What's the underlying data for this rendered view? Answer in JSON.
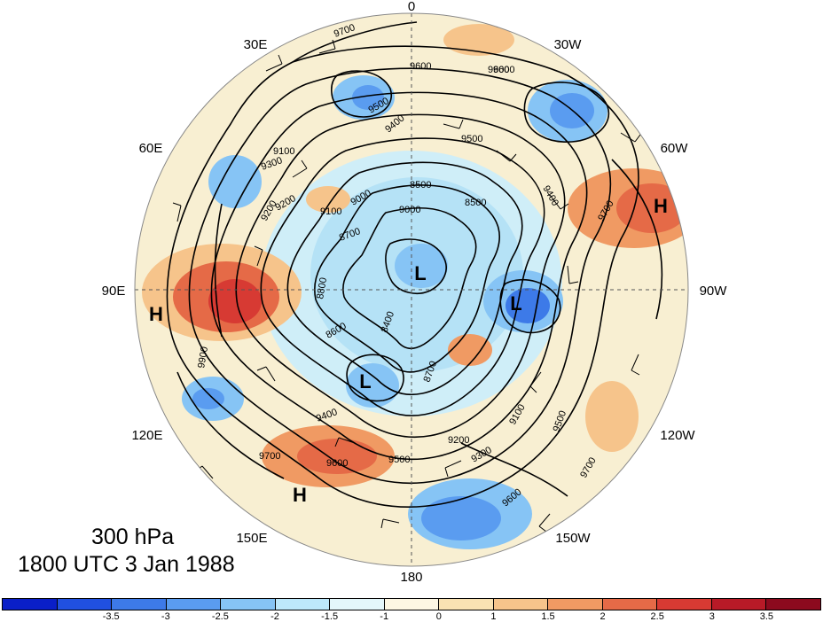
{
  "title": {
    "level": "300 hPa",
    "time": "1800 UTC 3 Jan 1988"
  },
  "longitude_labels": {
    "lon_0": "0",
    "lon_30w": "30W",
    "lon_60w": "60W",
    "lon_90w": "90W",
    "lon_120w": "120W",
    "lon_150w": "150W",
    "lon_180": "180",
    "lon_150e": "150E",
    "lon_120e": "120E",
    "lon_90e": "90E",
    "lon_60e": "60E",
    "lon_30e": "30E"
  },
  "contour_labels": [
    "9700",
    "9600",
    "9600",
    "9500",
    "9400",
    "9300",
    "9200",
    "9400",
    "9100",
    "9000",
    "8500",
    "8500",
    "8700",
    "8800",
    "8600",
    "8400",
    "8700",
    "9100",
    "9200",
    "9300",
    "9500",
    "9600",
    "9700",
    "9500",
    "9400",
    "9600",
    "9700",
    "9200",
    "9100",
    "9000",
    "9500",
    "9600",
    "9700",
    "9900"
  ],
  "pressure_centers": [
    {
      "type": "H",
      "label": "H"
    },
    {
      "type": "H",
      "label": "H"
    },
    {
      "type": "H",
      "label": "H"
    },
    {
      "type": "L",
      "label": "L"
    },
    {
      "type": "L",
      "label": "L"
    },
    {
      "type": "L",
      "label": "L"
    }
  ],
  "colorbar": {
    "colors": [
      "#0a1fc8",
      "#2050e0",
      "#3d7ae8",
      "#5a9cf0",
      "#86c4f5",
      "#bde8fb",
      "#e4f7fb",
      "#fdf7e3",
      "#f9e2b3",
      "#f6c48b",
      "#f09a63",
      "#e56a47",
      "#d73a33",
      "#b81a27",
      "#8c0a1e"
    ],
    "ticks": [
      "-3.5",
      "-3",
      "-2.5",
      "-2",
      "-1.5",
      "-1",
      "0",
      "1",
      "1.5",
      "2",
      "2.5",
      "3",
      "3.5"
    ]
  }
}
